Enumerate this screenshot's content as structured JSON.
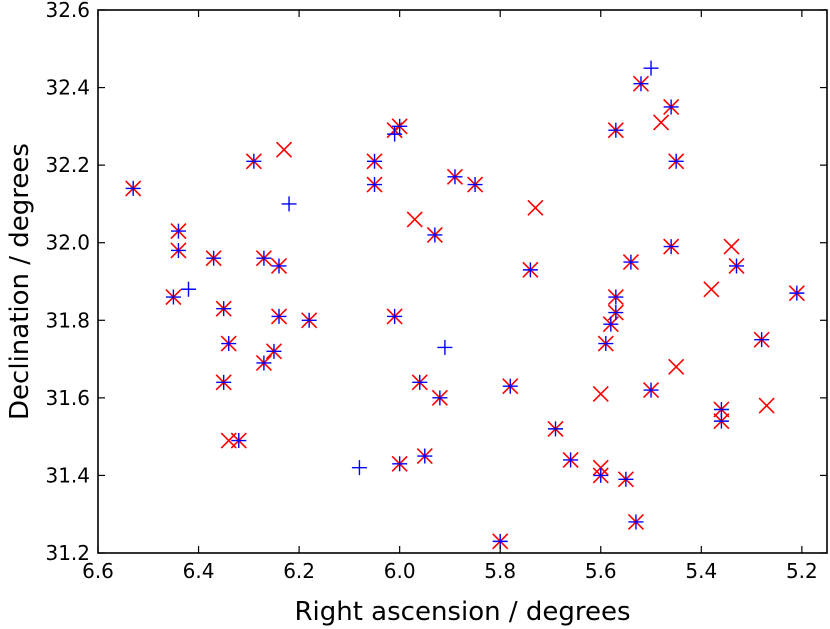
{
  "chart_data": {
    "type": "scatter",
    "xlabel": "Right ascension / degrees",
    "ylabel": "Declination / degrees",
    "xlim": [
      6.6,
      5.15
    ],
    "ylim": [
      31.2,
      32.6
    ],
    "x_inverted": true,
    "xticks": [
      "6.6",
      "6.4",
      "6.2",
      "6.0",
      "5.8",
      "5.6",
      "5.4",
      "5.2"
    ],
    "yticks": [
      "31.2",
      "31.4",
      "31.6",
      "31.8",
      "32.0",
      "32.2",
      "32.4",
      "32.6"
    ],
    "grid": false,
    "colors": {
      "x_series": "#ff0000",
      "plus_series": "#0000ff"
    },
    "series": [
      {
        "marker": "x",
        "color": "#ff0000",
        "points": [
          [
            6.53,
            32.14
          ],
          [
            6.45,
            31.86
          ],
          [
            6.44,
            32.03
          ],
          [
            6.44,
            31.98
          ],
          [
            6.37,
            31.96
          ],
          [
            6.35,
            31.83
          ],
          [
            6.35,
            31.64
          ],
          [
            6.34,
            31.74
          ],
          [
            6.34,
            31.49
          ],
          [
            6.32,
            31.49
          ],
          [
            6.29,
            32.21
          ],
          [
            6.27,
            31.96
          ],
          [
            6.27,
            31.69
          ],
          [
            6.25,
            31.72
          ],
          [
            6.24,
            31.94
          ],
          [
            6.24,
            31.81
          ],
          [
            6.23,
            32.24
          ],
          [
            6.18,
            31.8
          ],
          [
            6.05,
            32.21
          ],
          [
            6.05,
            32.15
          ],
          [
            6.01,
            32.29
          ],
          [
            6.0,
            32.3
          ],
          [
            6.01,
            31.81
          ],
          [
            6.0,
            31.43
          ],
          [
            5.97,
            32.06
          ],
          [
            5.96,
            31.64
          ],
          [
            5.95,
            31.45
          ],
          [
            5.93,
            32.02
          ],
          [
            5.92,
            31.6
          ],
          [
            5.89,
            32.17
          ],
          [
            5.85,
            32.15
          ],
          [
            5.8,
            31.23
          ],
          [
            5.78,
            31.63
          ],
          [
            5.74,
            31.93
          ],
          [
            5.73,
            32.09
          ],
          [
            5.69,
            31.52
          ],
          [
            5.66,
            31.44
          ],
          [
            5.6,
            31.61
          ],
          [
            5.6,
            31.4
          ],
          [
            5.6,
            31.42
          ],
          [
            5.59,
            31.74
          ],
          [
            5.58,
            31.79
          ],
          [
            5.57,
            31.86
          ],
          [
            5.57,
            31.82
          ],
          [
            5.57,
            32.29
          ],
          [
            5.55,
            31.39
          ],
          [
            5.54,
            31.95
          ],
          [
            5.53,
            31.28
          ],
          [
            5.52,
            32.41
          ],
          [
            5.5,
            31.62
          ],
          [
            5.48,
            32.31
          ],
          [
            5.46,
            32.35
          ],
          [
            5.46,
            31.99
          ],
          [
            5.45,
            32.21
          ],
          [
            5.45,
            31.68
          ],
          [
            5.38,
            31.88
          ],
          [
            5.36,
            31.54
          ],
          [
            5.36,
            31.57
          ],
          [
            5.34,
            31.99
          ],
          [
            5.33,
            31.94
          ],
          [
            5.28,
            31.75
          ],
          [
            5.27,
            31.58
          ],
          [
            5.21,
            31.87
          ]
        ]
      },
      {
        "marker": "+",
        "color": "#0000ff",
        "points": [
          [
            6.53,
            32.14
          ],
          [
            6.45,
            31.86
          ],
          [
            6.44,
            32.03
          ],
          [
            6.44,
            31.98
          ],
          [
            6.42,
            31.88
          ],
          [
            6.37,
            31.96
          ],
          [
            6.35,
            31.83
          ],
          [
            6.35,
            31.64
          ],
          [
            6.34,
            31.74
          ],
          [
            6.32,
            31.49
          ],
          [
            6.29,
            32.21
          ],
          [
            6.27,
            31.96
          ],
          [
            6.27,
            31.69
          ],
          [
            6.25,
            31.72
          ],
          [
            6.24,
            31.94
          ],
          [
            6.24,
            31.81
          ],
          [
            6.22,
            32.1
          ],
          [
            6.18,
            31.8
          ],
          [
            6.08,
            31.42
          ],
          [
            6.05,
            32.21
          ],
          [
            6.05,
            32.15
          ],
          [
            6.01,
            32.28
          ],
          [
            6.0,
            32.3
          ],
          [
            6.01,
            31.81
          ],
          [
            6.0,
            31.43
          ],
          [
            5.96,
            31.64
          ],
          [
            5.95,
            31.45
          ],
          [
            5.93,
            32.02
          ],
          [
            5.92,
            31.6
          ],
          [
            5.91,
            31.73
          ],
          [
            5.89,
            32.17
          ],
          [
            5.85,
            32.15
          ],
          [
            5.8,
            31.23
          ],
          [
            5.78,
            31.63
          ],
          [
            5.74,
            31.93
          ],
          [
            5.69,
            31.52
          ],
          [
            5.66,
            31.44
          ],
          [
            5.6,
            31.4
          ],
          [
            5.59,
            31.74
          ],
          [
            5.58,
            31.79
          ],
          [
            5.57,
            31.86
          ],
          [
            5.57,
            31.82
          ],
          [
            5.57,
            32.29
          ],
          [
            5.55,
            31.39
          ],
          [
            5.54,
            31.95
          ],
          [
            5.53,
            31.28
          ],
          [
            5.52,
            32.41
          ],
          [
            5.5,
            31.62
          ],
          [
            5.5,
            32.45
          ],
          [
            5.46,
            32.35
          ],
          [
            5.46,
            31.99
          ],
          [
            5.45,
            32.21
          ],
          [
            5.36,
            31.54
          ],
          [
            5.36,
            31.57
          ],
          [
            5.33,
            31.94
          ],
          [
            5.28,
            31.75
          ],
          [
            5.21,
            31.87
          ]
        ]
      }
    ]
  }
}
